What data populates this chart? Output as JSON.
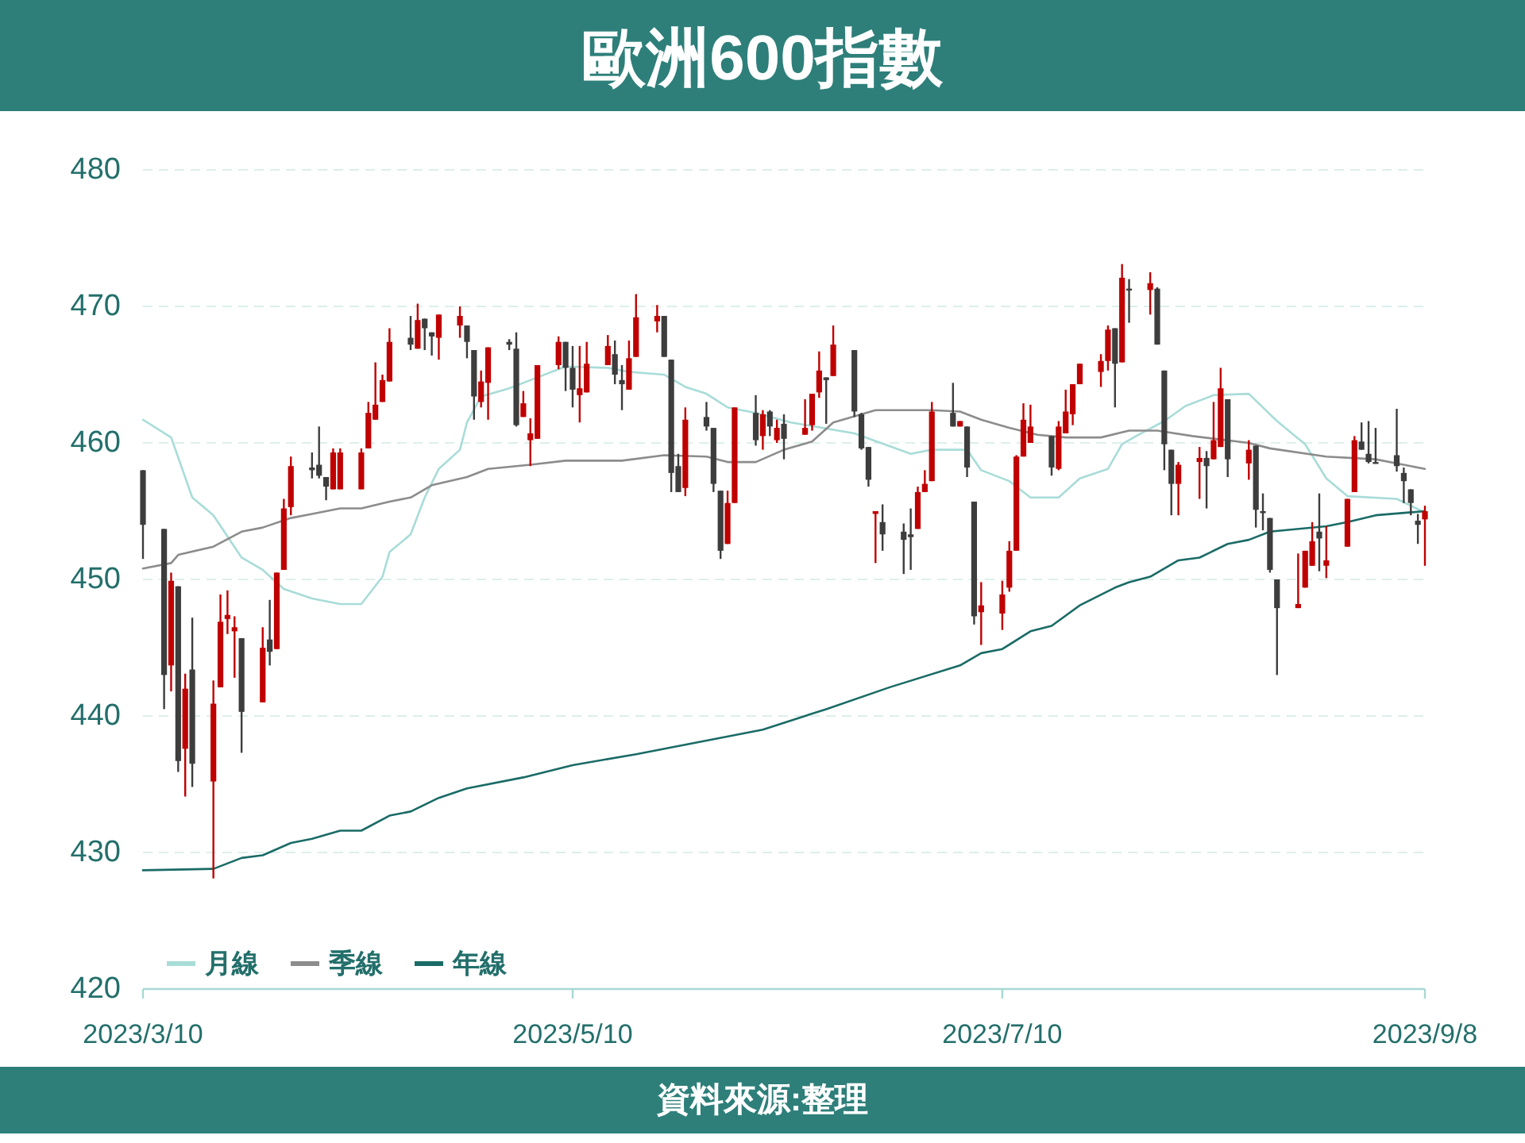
{
  "chart_data": {
    "type": "candlestick",
    "title": "歐洲600指數",
    "annotations": [
      "資料來源:整理"
    ],
    "x": [
      "2023-03-10",
      "2023-03-13",
      "2023-03-14",
      "2023-03-15",
      "2023-03-16",
      "2023-03-17",
      "2023-03-20",
      "2023-03-21",
      "2023-03-22",
      "2023-03-23",
      "2023-03-24",
      "2023-03-27",
      "2023-03-28",
      "2023-03-29",
      "2023-03-30",
      "2023-03-31",
      "2023-04-03",
      "2023-04-04",
      "2023-04-05",
      "2023-04-06",
      "2023-04-07",
      "2023-04-10",
      "2023-04-11",
      "2023-04-12",
      "2023-04-13",
      "2023-04-14",
      "2023-04-17",
      "2023-04-18",
      "2023-04-19",
      "2023-04-20",
      "2023-04-21",
      "2023-04-24",
      "2023-04-25",
      "2023-04-26",
      "2023-04-27",
      "2023-04-28",
      "2023-05-01",
      "2023-05-02",
      "2023-05-03",
      "2023-05-04",
      "2023-05-05",
      "2023-05-08",
      "2023-05-09",
      "2023-05-10",
      "2023-05-11",
      "2023-05-12",
      "2023-05-15",
      "2023-05-16",
      "2023-05-17",
      "2023-05-18",
      "2023-05-19",
      "2023-05-22",
      "2023-05-23",
      "2023-05-24",
      "2023-05-25",
      "2023-05-26",
      "2023-05-29",
      "2023-05-30",
      "2023-05-31",
      "2023-06-01",
      "2023-06-02",
      "2023-06-05",
      "2023-06-06",
      "2023-06-07",
      "2023-06-08",
      "2023-06-09",
      "2023-06-12",
      "2023-06-13",
      "2023-06-14",
      "2023-06-15",
      "2023-06-16",
      "2023-06-19",
      "2023-06-20",
      "2023-06-21",
      "2023-06-22",
      "2023-06-23",
      "2023-06-26",
      "2023-06-27",
      "2023-06-28",
      "2023-06-29",
      "2023-06-30",
      "2023-07-03",
      "2023-07-04",
      "2023-07-05",
      "2023-07-06",
      "2023-07-07",
      "2023-07-10",
      "2023-07-11",
      "2023-07-12",
      "2023-07-13",
      "2023-07-14",
      "2023-07-17",
      "2023-07-18",
      "2023-07-19",
      "2023-07-20",
      "2023-07-21",
      "2023-07-24",
      "2023-07-25",
      "2023-07-26",
      "2023-07-27",
      "2023-07-28",
      "2023-07-31",
      "2023-08-01",
      "2023-08-02",
      "2023-08-03",
      "2023-08-04",
      "2023-08-07",
      "2023-08-08",
      "2023-08-09",
      "2023-08-10",
      "2023-08-11",
      "2023-08-14",
      "2023-08-15",
      "2023-08-16",
      "2023-08-17",
      "2023-08-18",
      "2023-08-21",
      "2023-08-22",
      "2023-08-23",
      "2023-08-24",
      "2023-08-25",
      "2023-08-28",
      "2023-08-29",
      "2023-08-30",
      "2023-08-31",
      "2023-09-01",
      "2023-09-04",
      "2023-09-05",
      "2023-09-06",
      "2023-09-07",
      "2023-09-08"
    ],
    "ohlc": [
      [
        458.0,
        458.0,
        451.5,
        454.0
      ],
      [
        453.7,
        453.7,
        440.5,
        443.0
      ],
      [
        443.7,
        450.5,
        441.8,
        449.9
      ],
      [
        449.5,
        449.5,
        435.9,
        436.7
      ],
      [
        437.6,
        443.1,
        434.1,
        442.0
      ],
      [
        443.4,
        447.2,
        434.8,
        436.5
      ],
      [
        435.2,
        442.6,
        428.1,
        440.9
      ],
      [
        442.1,
        448.9,
        442.1,
        446.9
      ],
      [
        447.1,
        449.2,
        446.0,
        447.4
      ],
      [
        446.2,
        447.3,
        442.8,
        446.5
      ],
      [
        445.7,
        445.7,
        437.3,
        440.3
      ],
      [
        441.0,
        446.5,
        441.0,
        445.0
      ],
      [
        445.6,
        448.5,
        443.7,
        444.7
      ],
      [
        444.9,
        450.5,
        444.9,
        450.5
      ],
      [
        450.7,
        455.9,
        450.7,
        455.2
      ],
      [
        455.3,
        459.0,
        454.7,
        458.3
      ],
      [
        458.2,
        459.3,
        457.4,
        458.0
      ],
      [
        458.4,
        461.2,
        457.4,
        457.6
      ],
      [
        457.5,
        457.5,
        455.8,
        456.8
      ],
      [
        456.6,
        459.6,
        456.6,
        459.3
      ],
      [
        456.6,
        459.6,
        456.6,
        459.3
      ],
      [
        456.6,
        459.6,
        456.6,
        459.3
      ],
      [
        459.6,
        463.0,
        459.6,
        462.2
      ],
      [
        461.7,
        465.9,
        461.7,
        462.8
      ],
      [
        463.0,
        465.0,
        463.0,
        464.6
      ],
      [
        464.5,
        468.4,
        464.5,
        467.4
      ],
      [
        467.7,
        469.3,
        466.8,
        467.2
      ],
      [
        466.9,
        470.2,
        466.9,
        469.0
      ],
      [
        469.1,
        469.1,
        466.8,
        468.4
      ],
      [
        468.1,
        468.1,
        466.4,
        467.8
      ],
      [
        467.7,
        469.4,
        466.1,
        469.4
      ],
      [
        468.6,
        470.0,
        467.7,
        469.3
      ],
      [
        468.6,
        468.6,
        466.2,
        467.4
      ],
      [
        466.8,
        466.8,
        461.7,
        463.4
      ],
      [
        463.0,
        465.3,
        462.6,
        464.5
      ],
      [
        464.4,
        467.0,
        461.7,
        467.0
      ],
      [
        467.4,
        467.6,
        466.8,
        467.2
      ],
      [
        466.9,
        468.1,
        461.2,
        461.3
      ],
      [
        461.9,
        463.8,
        461.9,
        462.9
      ],
      [
        460.2,
        461.8,
        458.3,
        460.7
      ],
      [
        460.3,
        465.7,
        460.3,
        465.7
      ],
      [
        465.7,
        467.8,
        465.4,
        467.4
      ],
      [
        467.4,
        467.4,
        463.8,
        465.5
      ],
      [
        465.5,
        467.1,
        462.6,
        463.9
      ],
      [
        463.5,
        467.1,
        461.5,
        464.0
      ],
      [
        463.7,
        467.4,
        463.7,
        465.8
      ],
      [
        465.7,
        467.9,
        465.7,
        467.1
      ],
      [
        466.5,
        467.5,
        464.3,
        465.0
      ],
      [
        464.6,
        465.7,
        462.4,
        464.3
      ],
      [
        463.9,
        467.5,
        463.9,
        466.2
      ],
      [
        466.3,
        470.9,
        466.3,
        469.2
      ],
      [
        468.9,
        470.1,
        468.1,
        469.3
      ],
      [
        469.3,
        469.3,
        466.3,
        466.3
      ],
      [
        466.1,
        466.1,
        456.4,
        457.8
      ],
      [
        458.3,
        459.2,
        456.4,
        456.4
      ],
      [
        456.7,
        462.6,
        456.1,
        461.7
      ],
      [
        461.9,
        463.0,
        460.9,
        461.2
      ],
      [
        461.1,
        461.1,
        456.4,
        457.0
      ],
      [
        456.5,
        456.5,
        451.5,
        452.1
      ],
      [
        452.6,
        456.5,
        452.6,
        455.6
      ],
      [
        455.6,
        462.6,
        455.6,
        462.6
      ],
      [
        462.2,
        463.5,
        459.8,
        460.2
      ],
      [
        460.5,
        462.4,
        459.5,
        462.1
      ],
      [
        462.3,
        462.4,
        460.5,
        461.2
      ],
      [
        460.2,
        461.7,
        460.0,
        461.1
      ],
      [
        461.4,
        462.1,
        458.8,
        460.3
      ],
      [
        460.6,
        463.2,
        460.6,
        461.1
      ],
      [
        461.3,
        463.6,
        460.9,
        463.6
      ],
      [
        463.7,
        466.7,
        463.3,
        465.3
      ],
      [
        464.8,
        464.8,
        461.4,
        464.6
      ],
      [
        464.9,
        468.6,
        464.9,
        467.2
      ],
      [
        466.8,
        466.8,
        461.9,
        462.3
      ],
      [
        462.1,
        462.2,
        459.5,
        459.6
      ],
      [
        459.7,
        459.7,
        456.8,
        457.3
      ],
      [
        454.8,
        455.0,
        451.2,
        455.0
      ],
      [
        454.2,
        455.5,
        452.1,
        453.3
      ],
      [
        453.5,
        454.1,
        450.4,
        452.9
      ],
      [
        453.3,
        455.2,
        450.7,
        453.1
      ],
      [
        453.7,
        456.8,
        453.7,
        456.4
      ],
      [
        456.4,
        458.0,
        456.4,
        457.0
      ],
      [
        457.2,
        463.0,
        457.2,
        462.3
      ],
      [
        462.2,
        464.4,
        461.2,
        461.2
      ],
      [
        461.2,
        461.6,
        461.2,
        461.6
      ],
      [
        461.2,
        461.2,
        457.5,
        458.2
      ],
      [
        455.7,
        455.7,
        446.7,
        447.3
      ],
      [
        447.6,
        449.8,
        445.2,
        448.1
      ],
      [
        447.5,
        449.9,
        446.3,
        448.9
      ],
      [
        449.4,
        452.8,
        449.1,
        452.1
      ],
      [
        452.1,
        459.1,
        452.1,
        459.0
      ],
      [
        459.0,
        462.9,
        459.0,
        461.7
      ],
      [
        460.0,
        462.8,
        460.0,
        461.2
      ],
      [
        460.5,
        460.5,
        457.6,
        458.2
      ],
      [
        458.1,
        461.6,
        458.0,
        461.2
      ],
      [
        460.7,
        463.9,
        460.7,
        462.3
      ],
      [
        462.1,
        464.3,
        461.3,
        464.3
      ],
      [
        464.3,
        465.8,
        464.3,
        465.8
      ],
      [
        465.2,
        466.5,
        464.1,
        466.0
      ],
      [
        466.0,
        468.6,
        465.3,
        468.3
      ],
      [
        468.4,
        468.4,
        462.6,
        465.8
      ],
      [
        465.9,
        473.1,
        465.9,
        472.1
      ],
      [
        471.3,
        472.0,
        468.8,
        471.2
      ],
      [
        471.2,
        472.5,
        469.4,
        471.7
      ],
      [
        471.3,
        471.4,
        467.2,
        467.2
      ],
      [
        465.3,
        465.3,
        458.0,
        459.9
      ],
      [
        459.5,
        459.5,
        454.7,
        457.0
      ],
      [
        457.0,
        458.6,
        454.7,
        458.4
      ],
      [
        458.6,
        459.7,
        455.9,
        458.9
      ],
      [
        458.9,
        459.4,
        455.2,
        458.3
      ],
      [
        458.8,
        463.0,
        458.8,
        460.2
      ],
      [
        459.7,
        465.5,
        459.7,
        464.0
      ],
      [
        463.2,
        463.2,
        457.5,
        458.8
      ],
      [
        458.5,
        460.2,
        457.3,
        459.5
      ],
      [
        459.8,
        459.8,
        453.8,
        455.1
      ],
      [
        455.0,
        456.3,
        453.6,
        454.9
      ],
      [
        454.5,
        454.5,
        450.5,
        450.7
      ],
      [
        450.0,
        450.0,
        443.0,
        447.9
      ],
      [
        447.9,
        451.9,
        447.9,
        448.2
      ],
      [
        449.4,
        452.1,
        449.4,
        452.1
      ],
      [
        451.0,
        454.2,
        451.0,
        452.8
      ],
      [
        453.5,
        456.3,
        450.6,
        453.0
      ],
      [
        451.0,
        453.9,
        450.1,
        451.4
      ],
      [
        452.4,
        455.9,
        452.4,
        455.9
      ],
      [
        456.4,
        460.5,
        456.4,
        460.2
      ],
      [
        460.1,
        461.5,
        459.5,
        459.5
      ],
      [
        459.2,
        461.6,
        458.5,
        458.6
      ],
      [
        458.6,
        461.1,
        458.5,
        458.5
      ],
      [
        459.1,
        462.5,
        457.9,
        458.3
      ],
      [
        457.8,
        458.2,
        455.6,
        457.2
      ],
      [
        456.6,
        456.6,
        454.7,
        455.6
      ],
      [
        454.3,
        454.8,
        452.6,
        454.0
      ],
      [
        454.4,
        455.4,
        451.0,
        455.0
      ]
    ],
    "colors": [
      "#3d3d3d",
      "#3d3d3d",
      "#c00000",
      "#3d3d3d",
      "#c00000",
      "#3d3d3d",
      "#c00000",
      "#c00000",
      "#c00000",
      "#c00000",
      "#3d3d3d",
      "#c00000",
      "#3d3d3d",
      "#c00000",
      "#c00000",
      "#c00000",
      "#3d3d3d",
      "#3d3d3d",
      "#3d3d3d",
      "#c00000",
      "#c00000",
      "#c00000",
      "#c00000",
      "#c00000",
      "#c00000",
      "#c00000",
      "#3d3d3d",
      "#c00000",
      "#3d3d3d",
      "#3d3d3d",
      "#c00000",
      "#c00000",
      "#3d3d3d",
      "#3d3d3d",
      "#c00000",
      "#c00000",
      "#3d3d3d",
      "#3d3d3d",
      "#c00000",
      "#c00000",
      "#c00000",
      "#c00000",
      "#3d3d3d",
      "#3d3d3d",
      "#c00000",
      "#c00000",
      "#c00000",
      "#3d3d3d",
      "#3d3d3d",
      "#c00000",
      "#c00000",
      "#c00000",
      "#3d3d3d",
      "#3d3d3d",
      "#3d3d3d",
      "#c00000",
      "#3d3d3d",
      "#3d3d3d",
      "#3d3d3d",
      "#c00000",
      "#c00000",
      "#3d3d3d",
      "#c00000",
      "#3d3d3d",
      "#c00000",
      "#3d3d3d",
      "#c00000",
      "#c00000",
      "#c00000",
      "#3d3d3d",
      "#c00000",
      "#3d3d3d",
      "#3d3d3d",
      "#3d3d3d",
      "#c00000",
      "#3d3d3d",
      "#3d3d3d",
      "#3d3d3d",
      "#c00000",
      "#c00000",
      "#c00000",
      "#3d3d3d",
      "#c00000",
      "#3d3d3d",
      "#3d3d3d",
      "#c00000",
      "#c00000",
      "#c00000",
      "#c00000",
      "#c00000",
      "#c00000",
      "#3d3d3d",
      "#c00000",
      "#c00000",
      "#c00000",
      "#c00000",
      "#c00000",
      "#c00000",
      "#3d3d3d",
      "#c00000",
      "#3d3d3d",
      "#c00000",
      "#3d3d3d",
      "#3d3d3d",
      "#3d3d3d",
      "#c00000",
      "#c00000",
      "#3d3d3d",
      "#c00000",
      "#c00000",
      "#3d3d3d",
      "#c00000",
      "#3d3d3d",
      "#3d3d3d",
      "#3d3d3d",
      "#3d3d3d",
      "#c00000",
      "#c00000",
      "#c00000",
      "#3d3d3d",
      "#c00000",
      "#c00000",
      "#c00000",
      "#3d3d3d",
      "#3d3d3d",
      "#3d3d3d",
      "#3d3d3d",
      "#3d3d3d",
      "#3d3d3d",
      "#3d3d3d",
      "#c00000"
    ],
    "series": [
      {
        "type": "line",
        "name": "月線",
        "color": "#a8dcd8",
        "x": [
          "2023-03-10",
          "2023-03-14",
          "2023-03-17",
          "2023-03-20",
          "2023-03-24",
          "2023-03-27",
          "2023-03-30",
          "2023-04-03",
          "2023-04-07",
          "2023-04-10",
          "2023-04-13",
          "2023-04-14",
          "2023-04-17",
          "2023-04-19",
          "2023-04-21",
          "2023-04-24",
          "2023-04-25",
          "2023-04-27",
          "2023-05-01",
          "2023-05-04",
          "2023-05-09",
          "2023-05-15",
          "2023-05-18",
          "2023-05-23",
          "2023-05-26",
          "2023-05-29",
          "2023-06-01",
          "2023-06-05",
          "2023-06-10",
          "2023-06-19",
          "2023-06-27",
          "2023-06-30",
          "2023-07-05",
          "2023-07-07",
          "2023-07-11",
          "2023-07-14",
          "2023-07-18",
          "2023-07-21",
          "2023-07-25",
          "2023-07-27",
          "2023-07-29",
          "2023-08-02",
          "2023-08-05",
          "2023-08-09",
          "2023-08-14",
          "2023-08-18",
          "2023-08-22",
          "2023-08-25",
          "2023-08-28",
          "2023-09-04",
          "2023-09-08"
        ],
        "values": [
          461.7,
          460.4,
          456.0,
          454.7,
          451.6,
          450.7,
          449.3,
          448.6,
          448.2,
          448.2,
          450.2,
          452.0,
          453.3,
          456.0,
          458.1,
          459.5,
          461.5,
          463.4,
          464.0,
          464.6,
          465.6,
          465.5,
          465.2,
          465.0,
          464.1,
          463.6,
          462.6,
          462.2,
          461.5,
          460.7,
          459.2,
          459.5,
          459.5,
          458.0,
          457.2,
          456.0,
          456.0,
          457.4,
          458.1,
          459.9,
          460.5,
          461.6,
          462.7,
          463.5,
          463.6,
          461.6,
          459.9,
          457.4,
          456.1,
          455.9,
          454.9
        ]
      },
      {
        "type": "line",
        "name": "季線",
        "color": "#8c8c8c",
        "x": [
          "2023-03-10",
          "2023-03-14",
          "2023-03-15",
          "2023-03-20",
          "2023-03-24",
          "2023-03-27",
          "2023-03-31",
          "2023-04-03",
          "2023-04-07",
          "2023-04-10",
          "2023-04-14",
          "2023-04-17",
          "2023-04-20",
          "2023-04-25",
          "2023-04-28",
          "2023-05-04",
          "2023-05-09",
          "2023-05-17",
          "2023-05-23",
          "2023-05-29",
          "2023-06-01",
          "2023-06-05",
          "2023-06-09",
          "2023-06-13",
          "2023-06-16",
          "2023-06-22",
          "2023-06-30",
          "2023-07-04",
          "2023-07-07",
          "2023-07-11",
          "2023-07-15",
          "2023-07-19",
          "2023-07-24",
          "2023-07-28",
          "2023-08-01",
          "2023-08-06",
          "2023-08-14",
          "2023-08-17",
          "2023-08-25",
          "2023-09-01",
          "2023-09-08"
        ],
        "values": [
          450.8,
          451.2,
          451.8,
          452.4,
          453.5,
          453.8,
          454.5,
          454.8,
          455.2,
          455.2,
          455.7,
          456.0,
          456.9,
          457.5,
          458.1,
          458.4,
          458.7,
          458.7,
          459.1,
          459.0,
          458.6,
          458.6,
          459.5,
          460.1,
          461.5,
          462.4,
          462.4,
          462.3,
          461.7,
          461.1,
          460.6,
          460.4,
          460.4,
          460.9,
          460.9,
          460.5,
          460.0,
          459.6,
          459.0,
          458.8,
          458.1
        ]
      },
      {
        "type": "line",
        "name": "年線",
        "color": "#1a6b66",
        "x": [
          "2023-03-10",
          "2023-03-20",
          "2023-03-24",
          "2023-03-27",
          "2023-03-31",
          "2023-04-03",
          "2023-04-07",
          "2023-04-10",
          "2023-04-14",
          "2023-04-17",
          "2023-04-21",
          "2023-04-25",
          "2023-05-03",
          "2023-05-10",
          "2023-05-19",
          "2023-05-28",
          "2023-06-06",
          "2023-06-15",
          "2023-06-24",
          "2023-07-04",
          "2023-07-07",
          "2023-07-10",
          "2023-07-14",
          "2023-07-17",
          "2023-07-21",
          "2023-07-26",
          "2023-07-28",
          "2023-07-31",
          "2023-08-04",
          "2023-08-07",
          "2023-08-11",
          "2023-08-14",
          "2023-08-17",
          "2023-08-25",
          "2023-08-28",
          "2023-09-01",
          "2023-09-08"
        ],
        "values": [
          428.7,
          428.8,
          429.6,
          429.8,
          430.7,
          431.0,
          431.6,
          431.6,
          432.7,
          433.0,
          434.0,
          434.7,
          435.5,
          436.4,
          437.2,
          438.1,
          439.0,
          440.5,
          442.1,
          443.7,
          444.6,
          444.9,
          446.2,
          446.6,
          448.1,
          449.4,
          449.8,
          450.2,
          451.4,
          451.6,
          452.6,
          452.9,
          453.5,
          453.9,
          454.2,
          454.7,
          455.0
        ]
      }
    ],
    "xlim": [
      "2023-03-10",
      "2023-09-08"
    ],
    "xticks": [
      {
        "value": "2023-03-10",
        "label": "2023/3/10"
      },
      {
        "value": "2023-05-10",
        "label": "2023/5/10"
      },
      {
        "value": "2023-07-10",
        "label": "2023/7/10"
      },
      {
        "value": "2023-09-08",
        "label": "2023/9/8"
      }
    ],
    "ylim": [
      420,
      480
    ],
    "yticks": [
      420,
      430,
      440,
      450,
      460,
      470,
      480
    ],
    "grid": "y",
    "legend": "bottom left"
  }
}
